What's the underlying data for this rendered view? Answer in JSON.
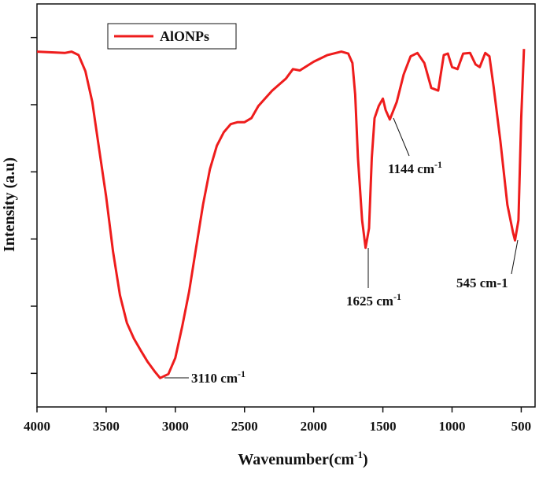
{
  "chart_data": {
    "type": "line",
    "xlabel": "Wavenumber(cm",
    "xlabel_superscript": "-1",
    "xlabel_suffix": ")",
    "ylabel": "Intensity (a.u)",
    "xlim": [
      4000,
      400
    ],
    "xticks": [
      4000,
      3500,
      3000,
      2500,
      2000,
      1500,
      1000,
      500
    ],
    "ylim": [
      0,
      6
    ],
    "yticks": [
      0.5,
      1.5,
      2.5,
      3.5,
      4.5,
      5.5
    ],
    "legend": "top-left",
    "series": [
      {
        "name": "AlONPs",
        "color": "#ee1c1c",
        "x": [
          4000,
          3800,
          3750,
          3700,
          3650,
          3600,
          3550,
          3500,
          3450,
          3400,
          3350,
          3300,
          3250,
          3200,
          3150,
          3110,
          3050,
          3000,
          2950,
          2900,
          2850,
          2800,
          2750,
          2700,
          2650,
          2600,
          2550,
          2500,
          2450,
          2400,
          2300,
          2200,
          2150,
          2100,
          2000,
          1900,
          1800,
          1750,
          1720,
          1700,
          1680,
          1650,
          1625,
          1600,
          1580,
          1560,
          1530,
          1500,
          1480,
          1450,
          1400,
          1350,
          1300,
          1250,
          1200,
          1150,
          1100,
          1060,
          1030,
          1000,
          960,
          920,
          870,
          830,
          800,
          760,
          730,
          700,
          650,
          600,
          560,
          545,
          520,
          500,
          480
        ],
        "values": [
          5.29,
          5.27,
          5.29,
          5.24,
          5.0,
          4.54,
          3.83,
          3.13,
          2.31,
          1.66,
          1.25,
          1.02,
          0.84,
          0.67,
          0.53,
          0.43,
          0.49,
          0.73,
          1.2,
          1.72,
          2.37,
          3.01,
          3.54,
          3.89,
          4.09,
          4.21,
          4.24,
          4.24,
          4.3,
          4.48,
          4.71,
          4.89,
          5.03,
          5.01,
          5.14,
          5.24,
          5.29,
          5.26,
          5.12,
          4.65,
          3.71,
          2.78,
          2.37,
          2.66,
          3.71,
          4.3,
          4.48,
          4.59,
          4.42,
          4.28,
          4.54,
          4.95,
          5.22,
          5.27,
          5.12,
          4.75,
          4.71,
          5.24,
          5.26,
          5.06,
          5.03,
          5.26,
          5.27,
          5.099,
          5.06,
          5.27,
          5.22,
          4.77,
          3.95,
          3.01,
          2.6,
          2.48,
          2.78,
          4.3,
          5.33
        ]
      }
    ],
    "annotations": [
      {
        "text": "3110 cm",
        "superscript": "-1"
      },
      {
        "text": "1625 cm",
        "superscript": "-1"
      },
      {
        "text": "1144 cm",
        "superscript": "-1"
      },
      {
        "text": "545 cm-1"
      }
    ]
  }
}
